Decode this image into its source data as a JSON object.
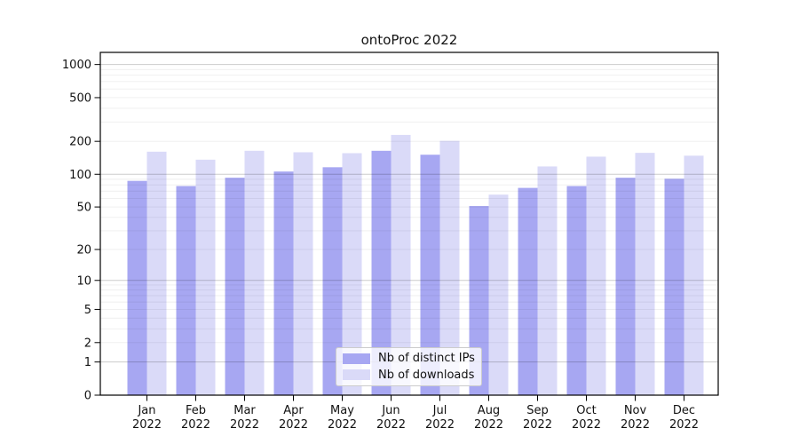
{
  "title": "ontoProc 2022",
  "chart_data": {
    "type": "bar",
    "title": "ontoProc 2022",
    "categories": [
      "Jan 2022",
      "Feb 2022",
      "Mar 2022",
      "Apr 2022",
      "May 2022",
      "Jun 2022",
      "Jul 2022",
      "Aug 2022",
      "Sep 2022",
      "Oct 2022",
      "Nov 2022",
      "Dec 2022"
    ],
    "series": [
      {
        "name": "Nb of distinct IPs",
        "color": "#a7a7f2",
        "values": [
          87,
          78,
          93,
          106,
          116,
          164,
          151,
          51,
          75,
          78,
          93,
          91
        ]
      },
      {
        "name": "Nb of downloads",
        "color": "#dadaf8",
        "values": [
          161,
          136,
          164,
          159,
          156,
          229,
          202,
          65,
          118,
          145,
          157,
          148
        ]
      }
    ],
    "xlabel": "",
    "ylabel": "",
    "y_ticks": [
      0,
      1,
      2,
      5,
      10,
      20,
      50,
      100,
      200,
      500,
      1000
    ],
    "y_scale": "log10(value+1)",
    "ylim": [
      0,
      1000
    ],
    "major_gridlines": [
      1,
      10,
      100,
      1000
    ],
    "grid": "horizontal minor + major",
    "legend_position": "inside-bottom-center"
  }
}
